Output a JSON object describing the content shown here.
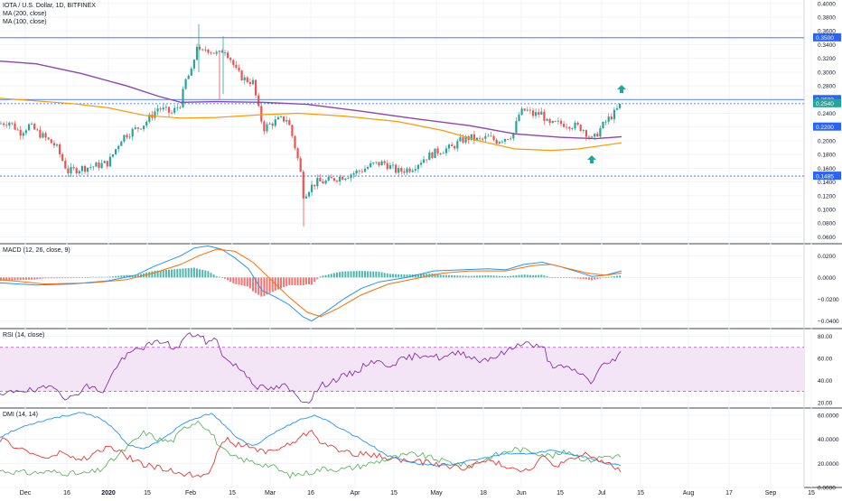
{
  "colors": {
    "up": "#26a69a",
    "down": "#ef5350",
    "ma200": "#8e44ad",
    "ma100": "#ff9800",
    "blue": "#2962ff",
    "macd_line": "#2196f3",
    "signal_line": "#ff6d00",
    "rsi_line": "#7b1fa2",
    "rsi_band": "#f3e5f5",
    "di_plus": "#4caf50",
    "di_minus": "#e53935",
    "adx": "#2196f3"
  },
  "header": {
    "title": "IOTA / U.S. Dollar, 1D, BITFINEX",
    "ma200": "MA (200, close)",
    "ma100": "MA (100, close)"
  },
  "pane_titles": {
    "macd": "MACD (12, 26, close, 9)",
    "rsi": "RSI (14, close)",
    "dmi": "DMI (14, 14)"
  },
  "chart_data": [
    {
      "type": "candlestick",
      "title": "IOTA / U.S. Dollar, 1D, BITFINEX",
      "y_ticks": [
        "0.4000",
        "0.3800",
        "0.3600",
        "0.3400",
        "0.3200",
        "0.3000",
        "0.2800",
        "0.2600",
        "0.2400",
        "0.2200",
        "0.2000",
        "0.1800",
        "0.1600",
        "0.1400",
        "0.1200",
        "0.1000",
        "0.0800",
        "0.0600"
      ],
      "ylim": [
        0.05,
        0.405
      ],
      "price_labels": [
        {
          "value": 0.35,
          "text": "0.3500",
          "color": "#2962ff"
        },
        {
          "value": 0.26,
          "text": "0.2600",
          "color": "#2962ff"
        },
        {
          "value": 0.254,
          "text": "0.2540",
          "color": "#26a69a"
        },
        {
          "value": 0.22,
          "text": "0.2200",
          "color": "#2962ff"
        },
        {
          "value": 0.1485,
          "text": "0.1485",
          "color": "#2962ff"
        }
      ],
      "horizontal_lines": [
        {
          "value": 0.35,
          "style": "solid"
        },
        {
          "value": 0.26,
          "style": "solid"
        },
        {
          "value": 0.254,
          "style": "dotted"
        },
        {
          "value": 0.1485,
          "style": "dotted"
        }
      ],
      "series": [
        {
          "name": "MA (200, close)",
          "start_value": 0.316,
          "end_value": 0.206
        },
        {
          "name": "MA (100, close)",
          "start_value": 0.262,
          "end_value": 0.197
        }
      ],
      "approx_closes": [
        {
          "date": "Dec 1",
          "value": 0.225
        },
        {
          "date": "Dec 16",
          "value": 0.155
        },
        {
          "date": "Jan 1",
          "value": 0.165
        },
        {
          "date": "Jan 16",
          "value": 0.225
        },
        {
          "date": "Jan 22",
          "value": 0.248
        },
        {
          "date": "Feb 1",
          "value": 0.29
        },
        {
          "date": "Feb 5",
          "value": 0.34
        },
        {
          "date": "Feb 9",
          "value": 0.33
        },
        {
          "date": "Feb 13",
          "value": 0.315
        },
        {
          "date": "Feb 21",
          "value": 0.29
        },
        {
          "date": "Feb 25",
          "value": 0.218
        },
        {
          "date": "Mar 5",
          "value": 0.23
        },
        {
          "date": "Mar 12",
          "value": 0.12
        },
        {
          "date": "Mar 20",
          "value": 0.13
        },
        {
          "date": "Apr 1",
          "value": 0.155
        },
        {
          "date": "Apr 15",
          "value": 0.16
        },
        {
          "date": "May 1",
          "value": 0.185
        },
        {
          "date": "May 10",
          "value": 0.2
        },
        {
          "date": "May 20",
          "value": 0.205
        },
        {
          "date": "Jun 1",
          "value": 0.24
        },
        {
          "date": "Jun 10",
          "value": 0.22
        },
        {
          "date": "Jun 20",
          "value": 0.222
        },
        {
          "date": "Jun 28",
          "value": 0.205
        },
        {
          "date": "Jul 8",
          "value": 0.254
        }
      ]
    },
    {
      "type": "line",
      "title": "MACD (12, 26, close, 9)",
      "y_ticks": [
        "0.0200",
        "0.0000",
        "−0.0200",
        "−0.0400"
      ],
      "ylim": [
        -0.047,
        0.031
      ],
      "series": [
        {
          "name": "MACD"
        },
        {
          "name": "Signal"
        },
        {
          "name": "Histogram"
        }
      ]
    },
    {
      "type": "line",
      "title": "RSI (14, close)",
      "y_ticks": [
        "80.00",
        "60.00",
        "40.00",
        "20.00"
      ],
      "ylim": [
        15,
        87
      ],
      "band": [
        30,
        70
      ],
      "last_value": 66
    },
    {
      "type": "line",
      "title": "DMI (14, 14)",
      "y_ticks": [
        "60.0000",
        "40.0000",
        "20.0000",
        "0.0000"
      ],
      "ylim": [
        0,
        66
      ],
      "series": [
        {
          "name": "+DI"
        },
        {
          "name": "−DI"
        },
        {
          "name": "ADX"
        }
      ]
    }
  ],
  "x_axis": {
    "labels": [
      "Dec",
      "16",
      "2020",
      "15",
      "Feb",
      "15",
      "Mar",
      "16",
      "Apr",
      "15",
      "May",
      "18",
      "Jun",
      "15",
      "Jul",
      "15",
      "Aug",
      "17",
      "Sep",
      "15"
    ],
    "bold": [
      "2020"
    ]
  }
}
